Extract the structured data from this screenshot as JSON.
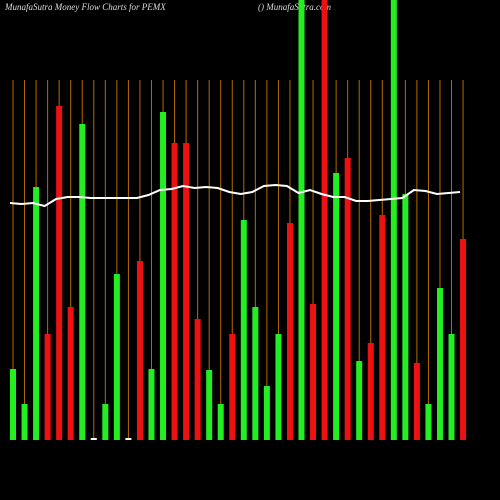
{
  "chart_data": {
    "type": "bar",
    "title": "MunafaSutra  Money Flow  Charts for PEMX",
    "subtitle": "() MunafaSutra.com",
    "categories": [
      null,
      null,
      null,
      null,
      null,
      null,
      null,
      null,
      null,
      null,
      null,
      null,
      null,
      null,
      null,
      null,
      null,
      null,
      null,
      null,
      null,
      null,
      null,
      null,
      null,
      null,
      null,
      null,
      null,
      null,
      null,
      null,
      null,
      null,
      null,
      null,
      null,
      null,
      null,
      null
    ],
    "values": [
      71,
      36,
      253,
      106,
      334,
      133,
      316,
      2,
      36,
      166,
      2,
      179,
      71,
      328,
      297,
      297,
      121,
      70,
      36,
      106,
      220,
      133,
      54,
      106,
      217,
      460,
      136,
      460,
      267,
      282,
      79,
      97,
      225,
      460,
      246,
      77,
      36,
      152,
      106,
      201
    ],
    "colors": [
      "#22ee22",
      "#22ee22",
      "#22ee22",
      "#ee1111",
      "#ee1111",
      "#ee1111",
      "#22ee22",
      "#ffffff",
      "#22ee22",
      "#22ee22",
      "#ffffff",
      "#ee1111",
      "#22ee22",
      "#22ee22",
      "#ee1111",
      "#ee1111",
      "#ee1111",
      "#22ee22",
      "#22ee22",
      "#ee1111",
      "#22ee22",
      "#22ee22",
      "#22ee22",
      "#22ee22",
      "#ee1111",
      "#22ee22",
      "#ee1111",
      "#ee1111",
      "#22ee22",
      "#ee1111",
      "#22ee22",
      "#ee1111",
      "#ee1111",
      "#22ee22",
      "#22ee22",
      "#ee1111",
      "#22ee22",
      "#22ee22",
      "#22ee22",
      "#ee1111"
    ],
    "line_values": [
      237,
      236,
      237,
      234,
      241,
      243,
      243,
      242,
      242,
      242,
      242,
      242,
      245,
      250,
      251,
      254,
      252,
      253,
      252,
      248,
      246,
      248,
      254,
      255,
      254,
      247,
      250,
      246,
      243,
      243,
      239,
      239,
      240,
      241,
      242,
      250,
      249,
      246,
      247,
      248
    ],
    "line_color": "#ffffff",
    "grid_color": "#b86a00",
    "ylim": [
      0,
      440
    ]
  }
}
